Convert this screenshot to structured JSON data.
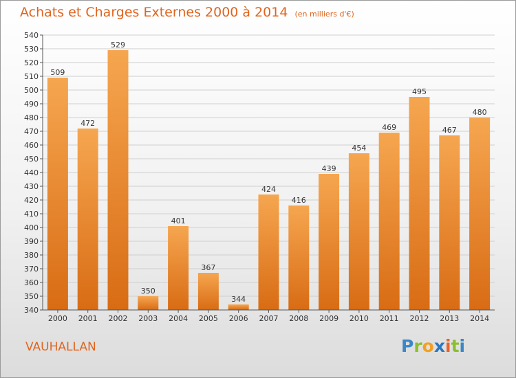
{
  "header": {
    "title": "Achats et Charges Externes 2000 à 2014",
    "subtitle": "(en milliers d'€)"
  },
  "footer": {
    "commune": "VAUHALLAN",
    "logo": {
      "letters": [
        "P",
        "r",
        "o",
        "x",
        "i",
        "t",
        "i"
      ],
      "colors": [
        "#3a87c8",
        "#8bbf2e",
        "#f2a024",
        "#2d77bf",
        "#e8622a",
        "#8bbf2e",
        "#3a87c8"
      ]
    }
  },
  "colors": {
    "bar_light": "#f6a650",
    "bar_dark": "#d86c14",
    "title": "#e0641e",
    "grid": "#cfcfcf"
  },
  "chart_data": {
    "type": "bar",
    "categories": [
      "2000",
      "2001",
      "2002",
      "2003",
      "2004",
      "2005",
      "2006",
      "2007",
      "2008",
      "2009",
      "2010",
      "2011",
      "2012",
      "2013",
      "2014"
    ],
    "values": [
      509,
      472,
      529,
      350,
      401,
      367,
      344,
      424,
      416,
      439,
      454,
      469,
      495,
      467,
      480
    ],
    "title": "Achats et Charges Externes 2000 à 2014",
    "xlabel": "",
    "ylabel": "",
    "ylim": [
      340,
      540
    ],
    "ytick_step": 10,
    "grid": true,
    "data_labels": true
  }
}
